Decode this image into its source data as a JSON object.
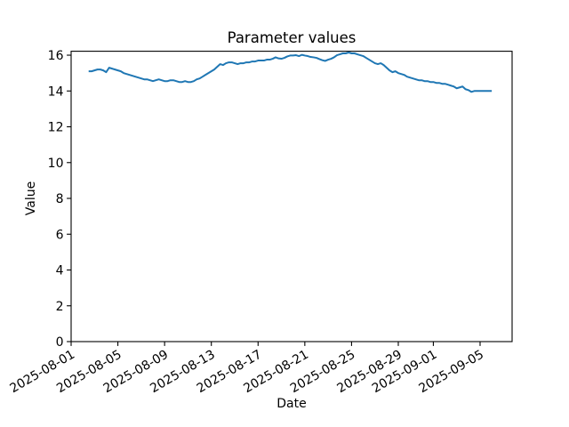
{
  "chart_data": {
    "type": "line",
    "title": "Parameter values",
    "xlabel": "Date",
    "ylabel": "Value",
    "line_color": "#1f77b4",
    "grid": false,
    "legend": "none",
    "ylim": [
      0,
      16.22
    ],
    "xlim_days": [
      0,
      37.74
    ],
    "y_ticks": [
      0,
      2,
      4,
      6,
      8,
      10,
      12,
      14,
      16
    ],
    "x_ticks": [
      {
        "day": 0,
        "label": "2025-08-01"
      },
      {
        "day": 4,
        "label": "2025-08-05"
      },
      {
        "day": 8,
        "label": "2025-08-09"
      },
      {
        "day": 12,
        "label": "2025-08-13"
      },
      {
        "day": 16,
        "label": "2025-08-17"
      },
      {
        "day": 20,
        "label": "2025-08-21"
      },
      {
        "day": 24,
        "label": "2025-08-25"
      },
      {
        "day": 28,
        "label": "2025-08-29"
      },
      {
        "day": 31,
        "label": "2025-09-01"
      },
      {
        "day": 35,
        "label": "2025-09-05"
      }
    ],
    "x_unit": "days since 2025-08-01",
    "x_start": 1.5,
    "x_step": 0.25,
    "values": [
      15.1,
      15.1,
      15.15,
      15.2,
      15.2,
      15.15,
      15.05,
      15.3,
      15.25,
      15.2,
      15.15,
      15.1,
      15.0,
      14.95,
      14.9,
      14.85,
      14.8,
      14.75,
      14.7,
      14.65,
      14.65,
      14.6,
      14.55,
      14.6,
      14.65,
      14.6,
      14.55,
      14.55,
      14.6,
      14.6,
      14.55,
      14.5,
      14.5,
      14.55,
      14.5,
      14.5,
      14.55,
      14.65,
      14.7,
      14.8,
      14.9,
      15.0,
      15.1,
      15.2,
      15.35,
      15.5,
      15.45,
      15.55,
      15.6,
      15.6,
      15.55,
      15.5,
      15.55,
      15.55,
      15.6,
      15.6,
      15.65,
      15.65,
      15.7,
      15.7,
      15.7,
      15.75,
      15.75,
      15.8,
      15.88,
      15.82,
      15.8,
      15.85,
      15.93,
      15.98,
      15.98,
      16.0,
      15.95,
      16.02,
      15.98,
      15.95,
      15.9,
      15.88,
      15.85,
      15.78,
      15.72,
      15.68,
      15.75,
      15.8,
      15.88,
      16.0,
      16.05,
      16.1,
      16.1,
      16.15,
      16.1,
      16.1,
      16.05,
      16.0,
      15.95,
      15.85,
      15.75,
      15.65,
      15.55,
      15.5,
      15.55,
      15.45,
      15.3,
      15.15,
      15.05,
      15.1,
      15.0,
      14.95,
      14.9,
      14.8,
      14.75,
      14.7,
      14.65,
      14.6,
      14.6,
      14.55,
      14.55,
      14.5,
      14.5,
      14.45,
      14.45,
      14.4,
      14.4,
      14.35,
      14.3,
      14.25,
      14.15,
      14.2,
      14.25,
      14.1,
      14.05,
      13.95,
      14.0,
      14.0,
      14.0,
      14.0,
      14.0,
      14.0,
      14.0
    ]
  }
}
